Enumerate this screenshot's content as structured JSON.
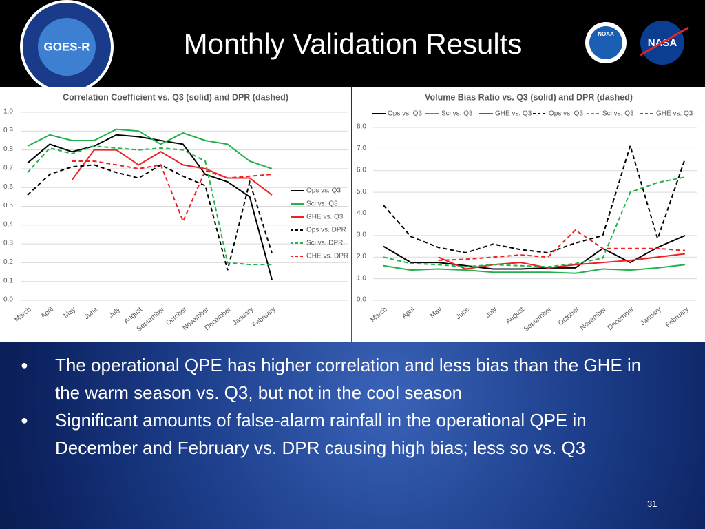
{
  "logos": [
    "GOES-R",
    "NOAA",
    "NASA"
  ],
  "title": "Monthly Validation Results",
  "bullets": [
    "The operational QPE has higher correlation and less bias than the GHE in the warm season vs. Q3, but not in the cool season",
    "Significant amounts of false-alarm rainfall in the operational QPE in December and February vs. DPR causing high bias; less so vs. Q3"
  ],
  "page_number": "31",
  "chart_data": [
    {
      "type": "line",
      "title": "Correlation Coefficient vs. Q3 (solid) and DPR (dashed)",
      "categories": [
        "March",
        "April",
        "May",
        "June",
        "July",
        "August",
        "September",
        "October",
        "November",
        "December",
        "January",
        "February"
      ],
      "ylim": [
        0,
        1
      ],
      "yticks": [
        {
          "value": 0,
          "label": "0.0"
        },
        0.1,
        0.2,
        0.3,
        0.4,
        0.5,
        0.6,
        0.7,
        0.8,
        0.9,
        {
          "value": 1,
          "label": "1.0"
        }
      ],
      "grid": true,
      "legend": "right",
      "series": [
        {
          "name": "Ops vs. Q3",
          "color": "#000000",
          "style": "solid",
          "values": [
            0.73,
            0.83,
            0.79,
            0.82,
            0.88,
            0.87,
            0.85,
            0.83,
            0.67,
            0.63,
            0.55,
            0.11
          ]
        },
        {
          "name": "Sci vs. Q3",
          "color": "#22b14c",
          "style": "solid",
          "values": [
            0.82,
            0.88,
            0.85,
            0.85,
            0.91,
            0.9,
            0.83,
            0.89,
            0.85,
            0.83,
            0.74,
            0.7
          ]
        },
        {
          "name": "GHE vs. Q3",
          "color": "#ee2222",
          "style": "solid",
          "values": [
            null,
            null,
            0.64,
            0.8,
            0.8,
            0.72,
            0.79,
            0.72,
            0.7,
            0.65,
            0.65,
            0.56
          ]
        },
        {
          "name": "Ops vs. DPR",
          "color": "#000000",
          "style": "dashed",
          "values": [
            0.56,
            0.67,
            0.71,
            0.72,
            0.68,
            0.65,
            0.72,
            0.66,
            0.61,
            0.16,
            0.63,
            0.25
          ]
        },
        {
          "name": "Sci vs. DPR",
          "color": "#22b14c",
          "style": "dashed",
          "values": [
            0.68,
            0.81,
            0.78,
            0.82,
            0.81,
            0.8,
            0.81,
            0.8,
            0.74,
            0.2,
            0.19,
            0.19
          ]
        },
        {
          "name": "GHE vs. DPR",
          "color": "#ee2222",
          "style": "dashed",
          "values": [
            null,
            null,
            0.74,
            0.74,
            0.72,
            0.7,
            0.72,
            0.42,
            0.69,
            0.65,
            0.66,
            0.67
          ]
        }
      ]
    },
    {
      "type": "line",
      "title": "Volume Bias Ratio vs. Q3 (solid) and DPR (dashed)",
      "categories": [
        "March",
        "April",
        "May",
        "June",
        "July",
        "August",
        "September",
        "October",
        "November",
        "December",
        "January",
        "February"
      ],
      "ylim": [
        0,
        8
      ],
      "yticks": [
        {
          "value": 0,
          "label": "0.0"
        },
        {
          "value": 1,
          "label": "1.0"
        },
        {
          "value": 2,
          "label": "2.0"
        },
        {
          "value": 3,
          "label": "3.0"
        },
        {
          "value": 4,
          "label": "4.0"
        },
        {
          "value": 5,
          "label": "5.0"
        },
        {
          "value": 6,
          "label": "6.0"
        },
        {
          "value": 7,
          "label": "7.0"
        },
        {
          "value": 8,
          "label": "8.0"
        }
      ],
      "grid": true,
      "legend": "top",
      "series": [
        {
          "name": "Ops vs. Q3",
          "color": "#000000",
          "style": "solid",
          "values": [
            2.5,
            1.75,
            1.75,
            1.6,
            1.45,
            1.45,
            1.5,
            1.5,
            2.4,
            1.75,
            2.45,
            3.0
          ]
        },
        {
          "name": "Sci vs. Q3",
          "color": "#22b14c",
          "style": "solid",
          "values": [
            1.6,
            1.4,
            1.45,
            1.4,
            1.3,
            1.3,
            1.3,
            1.25,
            1.45,
            1.4,
            1.5,
            1.65
          ]
        },
        {
          "name": "GHE vs. Q3",
          "color": "#ee2222",
          "style": "solid",
          "values": [
            null,
            null,
            2.0,
            1.45,
            1.65,
            1.75,
            1.5,
            1.65,
            1.75,
            1.85,
            2.0,
            2.15
          ]
        },
        {
          "name": "Ops vs. Q3",
          "color": "#000000",
          "style": "dashed",
          "values": [
            4.4,
            2.95,
            2.45,
            2.2,
            2.6,
            2.35,
            2.2,
            2.65,
            3.0,
            7.15,
            2.85,
            6.55
          ]
        },
        {
          "name": "Sci vs. Q3",
          "color": "#22b14c",
          "style": "dashed",
          "values": [
            2.0,
            1.7,
            1.65,
            1.55,
            1.65,
            1.6,
            1.55,
            1.7,
            1.95,
            5.0,
            5.45,
            5.7
          ]
        },
        {
          "name": "GHE vs. Q3",
          "color": "#ee2222",
          "style": "dashed",
          "values": [
            null,
            null,
            1.85,
            1.9,
            2.0,
            2.1,
            2.0,
            3.25,
            2.4,
            2.4,
            2.4,
            2.3
          ]
        }
      ]
    }
  ]
}
